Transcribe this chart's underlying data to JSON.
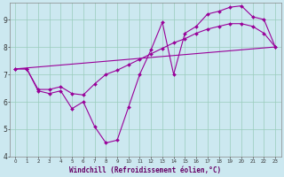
{
  "title": "",
  "xlabel": "Windchill (Refroidissement éolien,°C)",
  "bg_color": "#cce8f0",
  "line_color": "#990099",
  "grid_color": "#99ccbb",
  "xlim": [
    -0.5,
    23.5
  ],
  "ylim": [
    4,
    9.6
  ],
  "yticks": [
    4,
    5,
    6,
    7,
    8,
    9
  ],
  "xticks": [
    0,
    1,
    2,
    3,
    4,
    5,
    6,
    7,
    8,
    9,
    10,
    11,
    12,
    13,
    14,
    15,
    16,
    17,
    18,
    19,
    20,
    21,
    22,
    23
  ],
  "line1_x": [
    0,
    1,
    2,
    3,
    4,
    5,
    6,
    7,
    8,
    9,
    10,
    11,
    12,
    13,
    14,
    15,
    16,
    17,
    18,
    19,
    20,
    21,
    22,
    23
  ],
  "line1_y": [
    7.2,
    7.2,
    6.4,
    6.3,
    6.4,
    5.75,
    6.0,
    5.1,
    4.5,
    4.6,
    5.8,
    7.0,
    7.9,
    8.9,
    7.0,
    8.5,
    8.75,
    9.2,
    9.3,
    9.45,
    9.5,
    9.1,
    9.0,
    8.0
  ],
  "line2_x": [
    0,
    1,
    2,
    3,
    4,
    5,
    6,
    7,
    8,
    9,
    10,
    11,
    12,
    13,
    14,
    15,
    16,
    17,
    18,
    19,
    20,
    21,
    22,
    23
  ],
  "line2_y": [
    7.2,
    7.2,
    6.45,
    6.45,
    6.55,
    6.3,
    6.25,
    6.65,
    7.0,
    7.15,
    7.35,
    7.55,
    7.75,
    7.95,
    8.15,
    8.3,
    8.5,
    8.65,
    8.75,
    8.85,
    8.85,
    8.75,
    8.5,
    8.0
  ],
  "line3_x": [
    0,
    23
  ],
  "line3_y": [
    7.2,
    8.0
  ],
  "marker": "D",
  "marker_size": 2.0,
  "linewidth": 0.8
}
